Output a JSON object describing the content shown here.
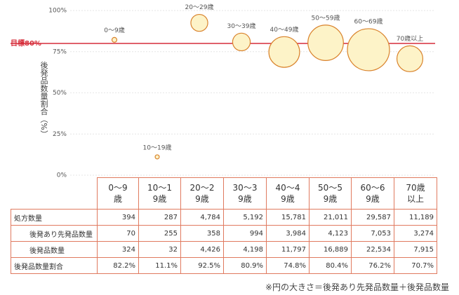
{
  "chart_data": {
    "type": "bubble",
    "categories": [
      "0〜9歳",
      "10〜19歳",
      "20〜29歳",
      "30〜39歳",
      "40〜49歳",
      "50〜59歳",
      "60〜69歳",
      "70歳以上"
    ],
    "ylabel": "後発品数量割合（%）",
    "ylim": [
      0,
      100
    ],
    "yticks": [
      {
        "value": 0,
        "label": "0%"
      },
      {
        "value": 25,
        "label": "25%"
      },
      {
        "value": 50,
        "label": "50%"
      },
      {
        "value": 75,
        "label": "75%"
      },
      {
        "value": 100,
        "label": "100%"
      }
    ],
    "grid": true,
    "color": "#fdf3c8",
    "target": {
      "value": 80,
      "label": "目標80%",
      "color": "#d62d3a"
    },
    "table": {
      "rows": [
        {
          "label": "処方数量",
          "values": [
            394,
            287,
            4784,
            5192,
            15781,
            21011,
            29587,
            11189
          ],
          "value_labels": [
            "394",
            "287",
            "4,784",
            "5,192",
            "15,781",
            "21,011",
            "29,587",
            "11,189"
          ]
        },
        {
          "label": "後発あり先発品数量",
          "values": [
            70,
            255,
            358,
            994,
            3984,
            4123,
            7053,
            3274
          ],
          "value_labels": [
            "70",
            "255",
            "358",
            "994",
            "3,984",
            "4,123",
            "7,053",
            "3,274"
          ]
        },
        {
          "label": "後発品数量",
          "values": [
            324,
            32,
            4426,
            4198,
            11797,
            16889,
            22534,
            7915
          ],
          "value_labels": [
            "324",
            "32",
            "4,426",
            "4,198",
            "11,797",
            "16,889",
            "22,534",
            "7,915"
          ]
        },
        {
          "label": "後発品数量割合",
          "values": [
            82.2,
            11.1,
            92.5,
            80.9,
            74.8,
            80.4,
            76.2,
            70.7
          ],
          "value_labels": [
            "82.2%",
            "11.1%",
            "92.5%",
            "80.9%",
            "74.8%",
            "80.4%",
            "76.2%",
            "70.7%"
          ]
        }
      ]
    },
    "note": "※円の大きさ＝後発あり先発品数量＋後発品数量"
  }
}
